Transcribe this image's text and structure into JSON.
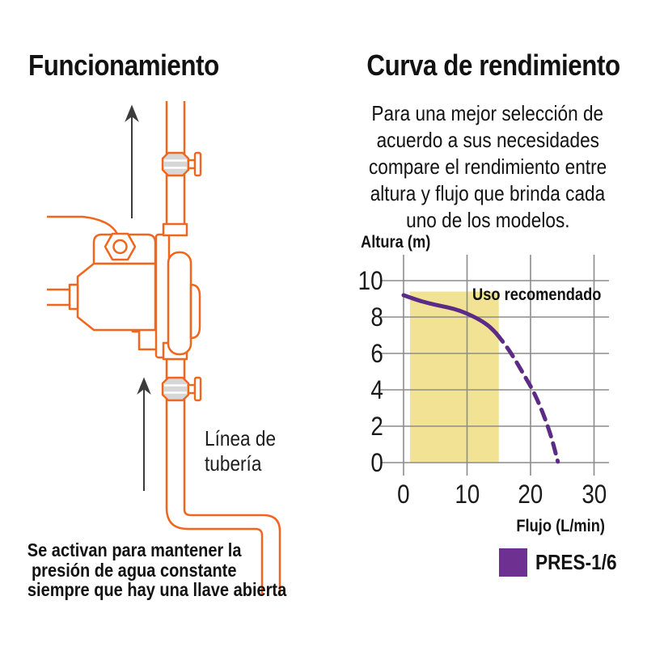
{
  "colors": {
    "orange": "#f1661f",
    "grid": "#8c8c8c",
    "yellow": "#f2e394",
    "curve_purple": "#5c2b85",
    "legend_purple": "#6e3191",
    "valve_fill": "#d7d7d7",
    "arrow": "#3c3c3c",
    "text": "#121212"
  },
  "icons": {
    "flow_arrow": "up-arrow-icon",
    "valve": "ball-valve-icon",
    "pump": "booster-pump-icon"
  },
  "left": {
    "title": "Funcionamiento",
    "pipe_label_lines": [
      "Línea de",
      "tubería"
    ],
    "caption_lines": [
      "Se activan para mantener la",
      "presión de agua constante",
      "siempre que hay una llave abierta"
    ]
  },
  "right": {
    "title": "Curva de rendimiento",
    "paragraph_lines": [
      "Para una mejor selección de",
      "acuerdo a sus necesidades",
      "compare el rendimiento entre",
      "altura y flujo que brinda cada",
      "uno de los modelos."
    ]
  },
  "chart_data": {
    "type": "line",
    "title": "",
    "xlabel": "Flujo (L/min)",
    "ylabel": "Altura (m)",
    "xlim": [
      0,
      30
    ],
    "ylim": [
      0,
      10
    ],
    "x_ticks": [
      0,
      10,
      20,
      30
    ],
    "y_ticks": [
      0,
      2,
      4,
      6,
      8,
      10
    ],
    "grid": true,
    "annotation": "Uso recomendado",
    "recommended_region": {
      "x": [
        1,
        15
      ],
      "y": [
        0,
        9.4
      ]
    },
    "series": [
      {
        "name": "PRES-1/6",
        "style": "solid",
        "points": [
          [
            0,
            9.2
          ],
          [
            2,
            8.95
          ],
          [
            4,
            8.75
          ],
          [
            6,
            8.6
          ],
          [
            8,
            8.45
          ],
          [
            10,
            8.2
          ],
          [
            12,
            7.85
          ],
          [
            13.5,
            7.5
          ],
          [
            14.6,
            7.1
          ]
        ]
      },
      {
        "name": "PRES-1/6",
        "style": "dashed",
        "points": [
          [
            14.6,
            7.1
          ],
          [
            16,
            6.5
          ],
          [
            17.5,
            5.7
          ],
          [
            19,
            4.8
          ],
          [
            20.5,
            3.9
          ],
          [
            22,
            2.7
          ],
          [
            23.3,
            1.4
          ],
          [
            24.3,
            0.05
          ]
        ]
      }
    ],
    "legend": [
      {
        "label": "PRES-1/6",
        "color": "#6e3191"
      }
    ]
  }
}
